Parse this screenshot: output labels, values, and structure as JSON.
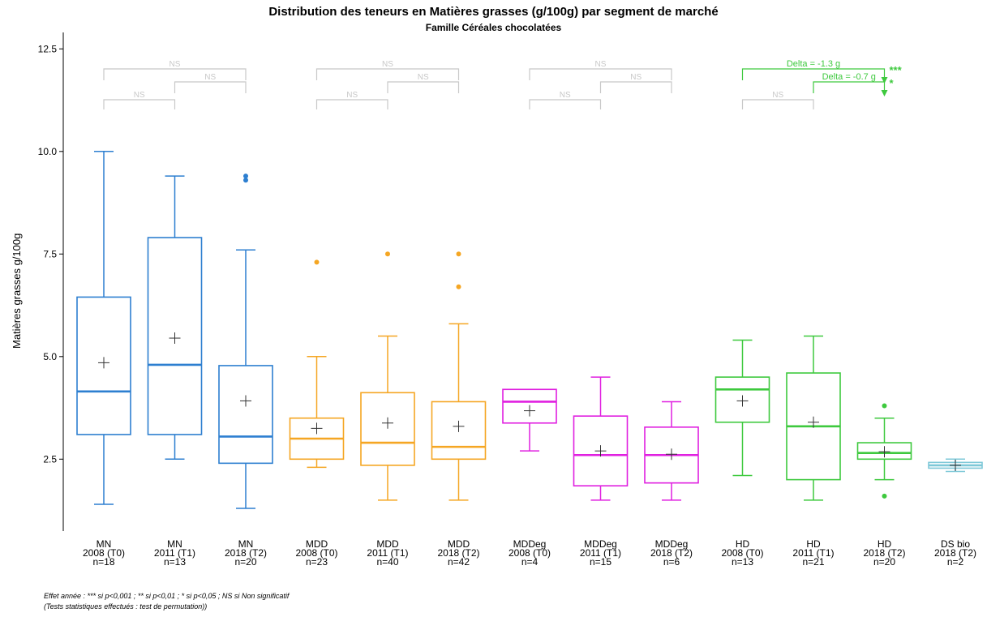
{
  "chart_data": {
    "type": "box",
    "title": "Distribution des teneurs en Matières grasses (g/100g) par segment de marché",
    "subtitle": "Famille Céréales chocolatées",
    "ylabel": "Matières grasses g/100g",
    "ylim": [
      0.8,
      12.8
    ],
    "yticks": [
      "2.5",
      "5.0",
      "7.5",
      "10.0",
      "12.5"
    ],
    "yticks_values": [
      2.5,
      5.0,
      7.5,
      10.0,
      12.5
    ],
    "colors": {
      "MN": "#2d7fd0",
      "MDD": "#f5a623",
      "MDDeg": "#e020e0",
      "HD": "#3ec93e",
      "DS bio": "#7ec8d8",
      "ns": "#c8c8c8"
    },
    "groups": [
      {
        "segment": "MN",
        "period": "2008 (T0)",
        "n": "n=18",
        "color": "#2d7fd0",
        "min": 1.4,
        "q1": 3.1,
        "median": 4.15,
        "q3": 6.45,
        "max": 10.0,
        "mean": 4.85,
        "outliers": []
      },
      {
        "segment": "MN",
        "period": "2011 (T1)",
        "n": "n=13",
        "color": "#2d7fd0",
        "min": 2.5,
        "q1": 3.1,
        "median": 4.8,
        "q3": 7.9,
        "max": 9.4,
        "mean": 5.45,
        "outliers": []
      },
      {
        "segment": "MN",
        "period": "2018 (T2)",
        "n": "n=20",
        "color": "#2d7fd0",
        "min": 1.3,
        "q1": 2.4,
        "median": 3.05,
        "q3": 4.78,
        "max": 7.6,
        "mean": 3.92,
        "outliers": [
          9.3,
          9.4
        ]
      },
      {
        "segment": "MDD",
        "period": "2008 (T0)",
        "n": "n=23",
        "color": "#f5a623",
        "min": 2.3,
        "q1": 2.5,
        "median": 3.0,
        "q3": 3.5,
        "max": 5.0,
        "mean": 3.25,
        "outliers": [
          7.3
        ]
      },
      {
        "segment": "MDD",
        "period": "2011 (T1)",
        "n": "n=40",
        "color": "#f5a623",
        "min": 1.5,
        "q1": 2.35,
        "median": 2.9,
        "q3": 4.12,
        "max": 5.5,
        "mean": 3.38,
        "outliers": [
          7.5
        ]
      },
      {
        "segment": "MDD",
        "period": "2018 (T2)",
        "n": "n=42",
        "color": "#f5a623",
        "min": 1.5,
        "q1": 2.5,
        "median": 2.8,
        "q3": 3.9,
        "max": 5.8,
        "mean": 3.3,
        "outliers": [
          6.7,
          7.5
        ]
      },
      {
        "segment": "MDDeg",
        "period": "2008 (T0)",
        "n": "n=4",
        "color": "#e020e0",
        "min": 2.7,
        "q1": 3.38,
        "median": 3.9,
        "q3": 4.2,
        "max": 4.2,
        "mean": 3.68,
        "outliers": []
      },
      {
        "segment": "MDDeg",
        "period": "2011 (T1)",
        "n": "n=15",
        "color": "#e020e0",
        "min": 1.5,
        "q1": 1.85,
        "median": 2.6,
        "q3": 3.55,
        "max": 4.5,
        "mean": 2.7,
        "outliers": []
      },
      {
        "segment": "MDDeg",
        "period": "2018 (T2)",
        "n": "n=6",
        "color": "#e020e0",
        "min": 1.5,
        "q1": 1.92,
        "median": 2.6,
        "q3": 3.28,
        "max": 3.9,
        "mean": 2.62,
        "outliers": []
      },
      {
        "segment": "HD",
        "period": "2008 (T0)",
        "n": "n=13",
        "color": "#3ec93e",
        "min": 2.1,
        "q1": 3.4,
        "median": 4.2,
        "q3": 4.5,
        "max": 5.4,
        "mean": 3.92,
        "outliers": []
      },
      {
        "segment": "HD",
        "period": "2011 (T1)",
        "n": "n=21",
        "color": "#3ec93e",
        "min": 1.5,
        "q1": 2.0,
        "median": 3.3,
        "q3": 4.6,
        "max": 5.5,
        "mean": 3.4,
        "outliers": []
      },
      {
        "segment": "HD",
        "period": "2018 (T2)",
        "n": "n=20",
        "color": "#3ec93e",
        "min": 2.0,
        "q1": 2.5,
        "median": 2.65,
        "q3": 2.9,
        "max": 3.5,
        "mean": 2.68,
        "outliers": [
          1.6,
          3.8
        ]
      },
      {
        "segment": "DS bio",
        "period": "2018 (T2)",
        "n": "n=2",
        "color": "#7ec8d8",
        "min": 2.2,
        "q1": 2.28,
        "median": 2.35,
        "q3": 2.42,
        "max": 2.5,
        "mean": 2.35,
        "outliers": []
      }
    ],
    "comparisons": [
      {
        "from": 0,
        "to": 2,
        "tier": 0,
        "label": "NS",
        "significant": false
      },
      {
        "from": 1,
        "to": 2,
        "tier": 1,
        "label": "NS",
        "significant": false
      },
      {
        "from": 0,
        "to": 1,
        "tier": 2,
        "label": "NS",
        "significant": false
      },
      {
        "from": 3,
        "to": 5,
        "tier": 0,
        "label": "NS",
        "significant": false
      },
      {
        "from": 4,
        "to": 5,
        "tier": 1,
        "label": "NS",
        "significant": false
      },
      {
        "from": 3,
        "to": 4,
        "tier": 2,
        "label": "NS",
        "significant": false
      },
      {
        "from": 6,
        "to": 8,
        "tier": 0,
        "label": "NS",
        "significant": false
      },
      {
        "from": 7,
        "to": 8,
        "tier": 1,
        "label": "NS",
        "significant": false
      },
      {
        "from": 6,
        "to": 7,
        "tier": 2,
        "label": "NS",
        "significant": false
      },
      {
        "from": 9,
        "to": 11,
        "tier": 0,
        "label": "Delta = -1.3 g",
        "stars": "***",
        "significant": true
      },
      {
        "from": 10,
        "to": 11,
        "tier": 1,
        "label": "Delta = -0.7 g",
        "stars": "*",
        "significant": true
      },
      {
        "from": 9,
        "to": 10,
        "tier": 2,
        "label": "NS",
        "significant": false
      }
    ]
  },
  "footnote": {
    "line1": "Effet année : *** si p<0,001 ; ** si p<0,01 ; * si p<0,05 ; NS si Non significatif",
    "line2": "(Tests statistiques effectués : test de permutation))"
  }
}
